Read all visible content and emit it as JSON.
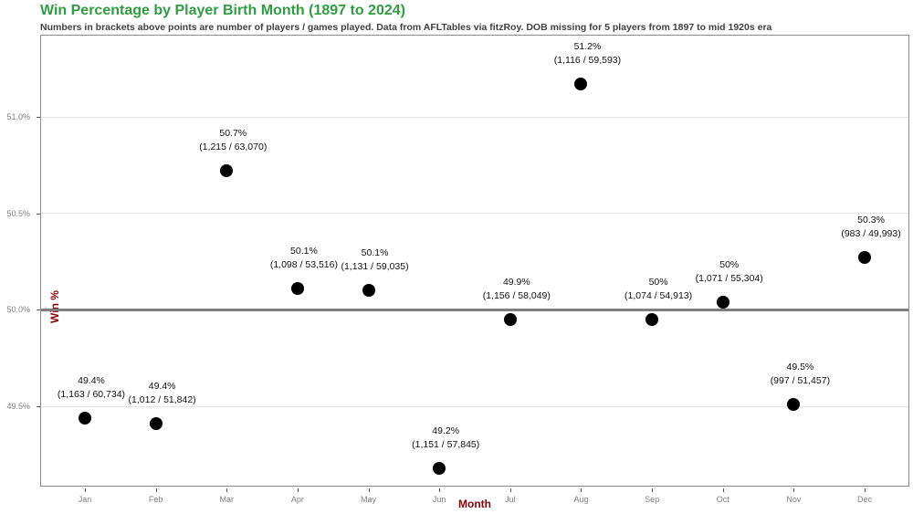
{
  "chart_data": {
    "type": "scatter",
    "title": "Win Percentage by Player Birth Month (1897 to 2024)",
    "subtitle": "Numbers in brackets above points are number of players / games played. Data from AFLTables via fitzRoy. DOB missing for 5 players from 1897 to mid 1920s era",
    "xlabel": "Month",
    "ylabel": "Win %",
    "legend_position": "none",
    "grid": "horizontal-only",
    "title_color": "#2e9e41",
    "subtitle_color": "#404040",
    "axis_title_color": "#8b0000",
    "tick_label_color": "#7f7f7f",
    "point_color": "#000000",
    "gridline_color": "#e4e4e4",
    "reference_line": {
      "value": 50.0,
      "color": "#7f7f7f"
    },
    "ylim": [
      49.1,
      51.45
    ],
    "y_ticks": [
      {
        "value": 51.0,
        "label": "51.0%"
      },
      {
        "value": 50.5,
        "label": "50.5%"
      },
      {
        "value": 50.0,
        "label": "50.0%"
      },
      {
        "value": 49.5,
        "label": "49.5%"
      }
    ],
    "categories": [
      "Jan",
      "Feb",
      "Mar",
      "Apr",
      "May",
      "Jun",
      "Jul",
      "Aug",
      "Sep",
      "Oct",
      "Nov",
      "Dec"
    ],
    "points": [
      {
        "month": "Jan",
        "win_pct": 49.44,
        "pct_label": "49.4%",
        "detail_label": "(1,163 / 60,734)",
        "players": 1163,
        "games": 60734
      },
      {
        "month": "Feb",
        "win_pct": 49.41,
        "pct_label": "49.4%",
        "detail_label": "(1,012 / 51,842)",
        "players": 1012,
        "games": 51842
      },
      {
        "month": "Mar",
        "win_pct": 50.72,
        "pct_label": "50.7%",
        "detail_label": "(1,215 / 63,070)",
        "players": 1215,
        "games": 63070
      },
      {
        "month": "Apr",
        "win_pct": 50.11,
        "pct_label": "50.1%",
        "detail_label": "(1,098 / 53,516)",
        "players": 1098,
        "games": 53516
      },
      {
        "month": "May",
        "win_pct": 50.1,
        "pct_label": "50.1%",
        "detail_label": "(1,131 / 59,035)",
        "players": 1131,
        "games": 59035
      },
      {
        "month": "Jun",
        "win_pct": 49.18,
        "pct_label": "49.2%",
        "detail_label": "(1,151 / 57,845)",
        "players": 1151,
        "games": 57845
      },
      {
        "month": "Jul",
        "win_pct": 49.95,
        "pct_label": "49.9%",
        "detail_label": "(1,156 / 58,049)",
        "players": 1156,
        "games": 58049
      },
      {
        "month": "Aug",
        "win_pct": 51.17,
        "pct_label": "51.2%",
        "detail_label": "(1,116 / 59,593)",
        "players": 1116,
        "games": 59593
      },
      {
        "month": "Sep",
        "win_pct": 49.95,
        "pct_label": "50%",
        "detail_label": "(1,074 / 54,913)",
        "players": 1074,
        "games": 54913
      },
      {
        "month": "Oct",
        "win_pct": 50.04,
        "pct_label": "50%",
        "detail_label": "(1,071 / 55,304)",
        "players": 1071,
        "games": 55304
      },
      {
        "month": "Nov",
        "win_pct": 49.51,
        "pct_label": "49.5%",
        "detail_label": "(997 / 51,457)",
        "players": 997,
        "games": 51457
      },
      {
        "month": "Dec",
        "win_pct": 50.27,
        "pct_label": "50.3%",
        "detail_label": "(983 / 49,993)",
        "players": 983,
        "games": 49993
      }
    ]
  }
}
